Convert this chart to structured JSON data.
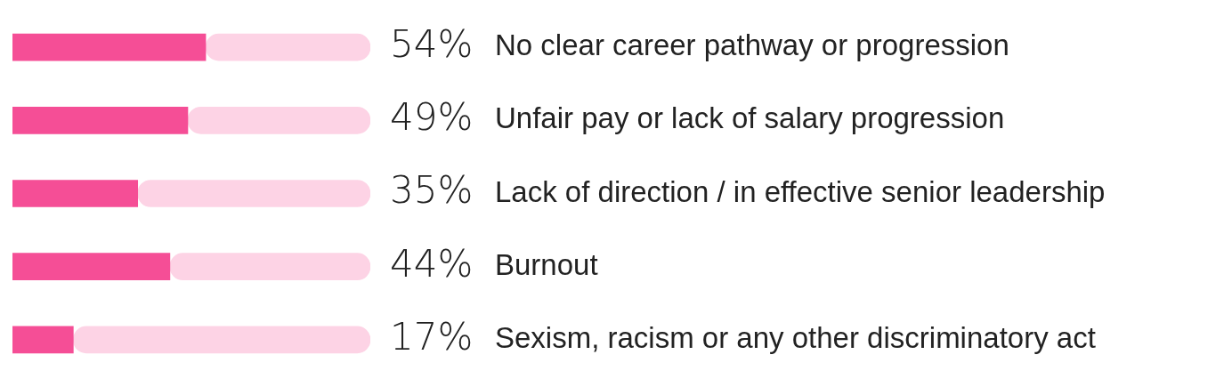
{
  "chart_data": {
    "type": "bar",
    "orientation": "horizontal",
    "stacked": true,
    "categories": [
      "No clear career pathway or progression",
      "Unfair pay or lack of salary progression",
      "Lack of direction / in effective senior leadership",
      "Burnout",
      "Sexism, racism or any other discriminatory act"
    ],
    "series": [
      {
        "color": "#f54e96",
        "values": [
          54,
          49,
          35,
          44,
          17
        ],
        "value_labels": [
          "54%",
          "49%",
          "35%",
          "44%",
          "17%"
        ]
      },
      {
        "color": "#fdd3e5",
        "values": [
          46,
          51,
          65,
          56,
          83
        ]
      }
    ],
    "xlim": [
      0,
      100
    ],
    "tick_labels": "y",
    "legend": false
  }
}
